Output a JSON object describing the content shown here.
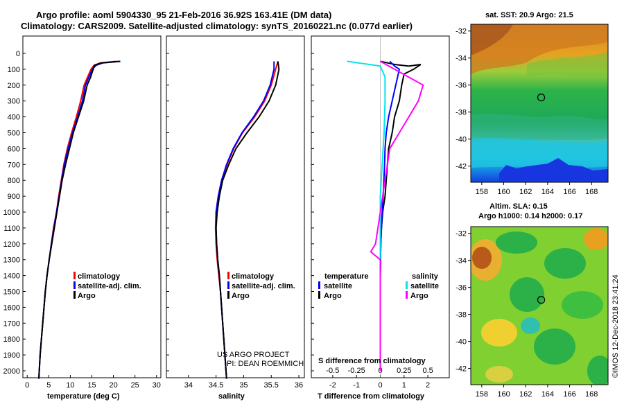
{
  "header": {
    "line1": "Argo profile: aoml 5904330_95 21-Feb-2016 36.92S 163.41E (DM data)",
    "line2": "Climatology: CARS2009. Satellite-adjusted climatology: synTS_20160221.nc (0.077d earlier)"
  },
  "credits": {
    "line1": "US ARGO PROJECT",
    "line2": "PI: DEAN ROEMMICH"
  },
  "imos_stamp": "©IMOS 12-Dec-2018 23:41:24",
  "colors": {
    "climatology": "#ff0000",
    "satellite": "#0000ff",
    "argo": "#000000",
    "sat_salinity": "#00e5ee",
    "argo_salinity": "#ff00ff"
  },
  "chart_data": [
    {
      "id": "temperature",
      "type": "line",
      "xlabel": "temperature (deg C)",
      "xlim": [
        -1,
        31
      ],
      "xticks": [
        0,
        5,
        10,
        15,
        20,
        25,
        30
      ],
      "ylim": [
        2050,
        0
      ],
      "yticks": [
        0,
        100,
        200,
        300,
        400,
        500,
        600,
        700,
        800,
        900,
        1000,
        1100,
        1200,
        1300,
        1400,
        1500,
        1600,
        1700,
        1800,
        1900,
        2000
      ],
      "legend": [
        "climatology",
        "satellite-adj. clim.",
        "Argo"
      ],
      "series": [
        {
          "name": "climatology",
          "color": "#ff0000",
          "points": [
            [
              20.6,
              50
            ],
            [
              17,
              60
            ],
            [
              15.5,
              75
            ],
            [
              14.8,
              100
            ],
            [
              14,
              150
            ],
            [
              13.2,
              200
            ],
            [
              12.4,
              300
            ],
            [
              11.4,
              400
            ],
            [
              10.3,
              500
            ],
            [
              9.3,
              600
            ],
            [
              8.5,
              700
            ],
            [
              7.9,
              800
            ],
            [
              7.3,
              900
            ],
            [
              6.8,
              1000
            ],
            [
              6.1,
              1100
            ],
            [
              5.6,
              1200
            ],
            [
              5.1,
              1300
            ],
            [
              4.6,
              1400
            ],
            [
              4.2,
              1500
            ],
            [
              3.9,
              1600
            ],
            [
              3.6,
              1700
            ],
            [
              3.3,
              1800
            ],
            [
              3.0,
              1900
            ],
            [
              2.8,
              2000
            ],
            [
              2.7,
              2050
            ]
          ]
        },
        {
          "name": "satellite-adj. clim.",
          "color": "#0000ff",
          "points": [
            [
              21.5,
              50
            ],
            [
              17.6,
              60
            ],
            [
              16,
              75
            ],
            [
              15.1,
              100
            ],
            [
              14.3,
              150
            ],
            [
              13.5,
              200
            ],
            [
              12.8,
              300
            ],
            [
              11.7,
              400
            ],
            [
              10.5,
              500
            ],
            [
              9.5,
              600
            ],
            [
              8.6,
              700
            ],
            [
              8.0,
              800
            ],
            [
              7.4,
              900
            ],
            [
              6.8,
              1000
            ],
            [
              6.2,
              1100
            ],
            [
              5.6,
              1200
            ],
            [
              5.1,
              1300
            ],
            [
              4.6,
              1400
            ],
            [
              4.2,
              1500
            ],
            [
              3.9,
              1600
            ],
            [
              3.6,
              1700
            ],
            [
              3.3,
              1800
            ],
            [
              3.0,
              1900
            ],
            [
              2.8,
              2000
            ],
            [
              2.7,
              2050
            ]
          ]
        },
        {
          "name": "Argo",
          "color": "#000000",
          "points": [
            [
              21.6,
              50
            ],
            [
              17.2,
              60
            ],
            [
              15.6,
              75
            ],
            [
              15.3,
              100
            ],
            [
              14.7,
              150
            ],
            [
              13.9,
              200
            ],
            [
              13.1,
              300
            ],
            [
              11.9,
              400
            ],
            [
              10.7,
              500
            ],
            [
              9.8,
              600
            ],
            [
              8.9,
              700
            ],
            [
              8.1,
              800
            ],
            [
              7.5,
              900
            ],
            [
              6.9,
              1000
            ],
            [
              6.3,
              1100
            ],
            [
              5.7,
              1200
            ],
            [
              5.1,
              1300
            ],
            [
              4.6,
              1400
            ],
            [
              4.2,
              1500
            ],
            [
              3.9,
              1600
            ],
            [
              3.6,
              1700
            ],
            [
              3.3,
              1800
            ],
            [
              3.0,
              1900
            ],
            [
              2.8,
              2000
            ],
            [
              2.7,
              2050
            ]
          ]
        }
      ]
    },
    {
      "id": "salinity",
      "type": "line",
      "xlabel": "salinity",
      "xlim": [
        33.6,
        36.1
      ],
      "xticks": [
        34,
        34.5,
        35,
        35.5,
        36
      ],
      "ylim": [
        2050,
        0
      ],
      "legend": [
        "climatology",
        "satellite-adj. clim.",
        "Argo"
      ],
      "series": [
        {
          "name": "climatology",
          "color": "#ff0000",
          "points": [
            [
              35.62,
              50
            ],
            [
              35.58,
              100
            ],
            [
              35.5,
              200
            ],
            [
              35.38,
              300
            ],
            [
              35.2,
              400
            ],
            [
              34.98,
              500
            ],
            [
              34.82,
              600
            ],
            [
              34.7,
              700
            ],
            [
              34.6,
              800
            ],
            [
              34.54,
              900
            ],
            [
              34.5,
              1000
            ],
            [
              34.49,
              1100
            ],
            [
              34.5,
              1200
            ],
            [
              34.52,
              1300
            ],
            [
              34.55,
              1400
            ],
            [
              34.58,
              1500
            ],
            [
              34.6,
              1600
            ],
            [
              34.62,
              1700
            ],
            [
              34.64,
              1800
            ],
            [
              34.66,
              1900
            ],
            [
              34.68,
              2000
            ],
            [
              34.69,
              2050
            ]
          ]
        },
        {
          "name": "satellite-adj. clim.",
          "color": "#0000ff",
          "points": [
            [
              35.55,
              50
            ],
            [
              35.55,
              100
            ],
            [
              35.48,
              200
            ],
            [
              35.36,
              300
            ],
            [
              35.18,
              400
            ],
            [
              34.97,
              500
            ],
            [
              34.81,
              600
            ],
            [
              34.69,
              700
            ],
            [
              34.6,
              800
            ],
            [
              34.54,
              900
            ],
            [
              34.5,
              1000
            ],
            [
              34.5,
              1100
            ],
            [
              34.51,
              1200
            ],
            [
              34.53,
              1300
            ],
            [
              34.56,
              1400
            ],
            [
              34.58,
              1500
            ],
            [
              34.6,
              1600
            ],
            [
              34.62,
              1700
            ],
            [
              34.64,
              1800
            ],
            [
              34.66,
              1900
            ],
            [
              34.68,
              2000
            ],
            [
              34.69,
              2050
            ]
          ]
        },
        {
          "name": "Argo",
          "color": "#000000",
          "points": [
            [
              35.62,
              50
            ],
            [
              35.64,
              100
            ],
            [
              35.58,
              200
            ],
            [
              35.46,
              300
            ],
            [
              35.28,
              400
            ],
            [
              35.06,
              500
            ],
            [
              34.86,
              600
            ],
            [
              34.73,
              700
            ],
            [
              34.62,
              800
            ],
            [
              34.56,
              900
            ],
            [
              34.52,
              1000
            ],
            [
              34.5,
              1100
            ],
            [
              34.51,
              1200
            ],
            [
              34.53,
              1300
            ],
            [
              34.56,
              1400
            ],
            [
              34.58,
              1500
            ],
            [
              34.6,
              1600
            ],
            [
              34.62,
              1700
            ],
            [
              34.64,
              1800
            ],
            [
              34.66,
              1900
            ],
            [
              34.68,
              2000
            ],
            [
              34.69,
              2050
            ]
          ]
        }
      ]
    },
    {
      "id": "difference",
      "type": "line",
      "xlabel": "T difference from climatology",
      "xlim": [
        -2.9,
        2.9
      ],
      "xticks": [
        -2,
        -1,
        0,
        1,
        2
      ],
      "top_axis_label": "S difference from climatology",
      "top_ticks": [
        -0.5,
        -0.25,
        0,
        0.25,
        0.5
      ],
      "ylim": [
        2050,
        0
      ],
      "legend_temperature": {
        "title": "temperature",
        "items": [
          "satellite",
          "Argo"
        ]
      },
      "legend_salinity": {
        "title": "salinity",
        "items": [
          "satellite",
          "Argo"
        ]
      },
      "series": [
        {
          "name": "temperature Argo",
          "color": "#000000",
          "points": [
            [
              0,
              50
            ],
            [
              0.6,
              70
            ],
            [
              1.2,
              80
            ],
            [
              1.7,
              70
            ],
            [
              1.4,
              100
            ],
            [
              1.0,
              130
            ],
            [
              0.9,
              200
            ],
            [
              0.8,
              300
            ],
            [
              0.6,
              400
            ],
            [
              0.5,
              500
            ],
            [
              0.35,
              600
            ],
            [
              0.3,
              700
            ],
            [
              0.25,
              800
            ],
            [
              0.2,
              900
            ],
            [
              0.1,
              1000
            ],
            [
              0.05,
              1100
            ],
            [
              0.02,
              1200
            ],
            [
              0,
              1400
            ],
            [
              0,
              1600
            ],
            [
              0,
              2000
            ]
          ]
        },
        {
          "name": "temperature satellite",
          "color": "#0000ff",
          "points": [
            [
              0.4,
              50
            ],
            [
              0.6,
              80
            ],
            [
              0.8,
              100
            ],
            [
              0.65,
              200
            ],
            [
              0.5,
              300
            ],
            [
              0.35,
              400
            ],
            [
              0.25,
              500
            ],
            [
              0.2,
              600
            ],
            [
              0.18,
              700
            ],
            [
              0.15,
              800
            ],
            [
              0.12,
              900
            ],
            [
              0.08,
              1000
            ],
            [
              0.05,
              1100
            ],
            [
              0.02,
              1200
            ],
            [
              0,
              1400
            ],
            [
              0,
              2000
            ]
          ]
        },
        {
          "name": "salinity satellite",
          "color": "#00e5ee",
          "points": [
            [
              -0.35,
              50
            ],
            [
              0,
              80
            ],
            [
              0.05,
              150
            ],
            [
              0.05,
              300
            ],
            [
              0.04,
              500
            ],
            [
              0.02,
              700
            ],
            [
              0,
              900
            ],
            [
              0,
              1100
            ],
            [
              0,
              1300
            ],
            [
              0,
              1600
            ],
            [
              0,
              2000
            ]
          ]
        },
        {
          "name": "salinity Argo",
          "color": "#ff00ff",
          "points": [
            [
              0,
              50
            ],
            [
              0.15,
              100
            ],
            [
              0.45,
              200
            ],
            [
              0.4,
              300
            ],
            [
              0.3,
              400
            ],
            [
              0.2,
              500
            ],
            [
              0.1,
              600
            ],
            [
              0.05,
              800
            ],
            [
              0,
              1000
            ],
            [
              -0.05,
              1200
            ],
            [
              -0.1,
              1250
            ],
            [
              0,
              1300
            ],
            [
              0,
              1600
            ],
            [
              0,
              2000
            ]
          ]
        }
      ]
    }
  ],
  "maps": [
    {
      "id": "sst-map",
      "title": "sat. SST: 20.9 Argo: 21.5",
      "lon_ticks": [
        158,
        160,
        162,
        164,
        166,
        168
      ],
      "lat_ticks": [
        -32,
        -34,
        -36,
        -38,
        -40,
        -42
      ],
      "lon_range": [
        157,
        169.5
      ],
      "lat_range": [
        -31.5,
        -43.2
      ],
      "float_lon": 163.41,
      "float_lat": -36.92
    },
    {
      "id": "sla-map",
      "title_line1": "Altim. SLA: 0.15",
      "title_line2": "Argo h1000: 0.14 h2000: 0.17",
      "lon_ticks": [
        158,
        160,
        162,
        164,
        166,
        168
      ],
      "lat_ticks": [
        -32,
        -34,
        -36,
        -38,
        -40,
        -42
      ],
      "lon_range": [
        157,
        169.5
      ],
      "lat_range": [
        -31.5,
        -43.2
      ],
      "float_lon": 163.41,
      "float_lat": -36.92
    }
  ]
}
